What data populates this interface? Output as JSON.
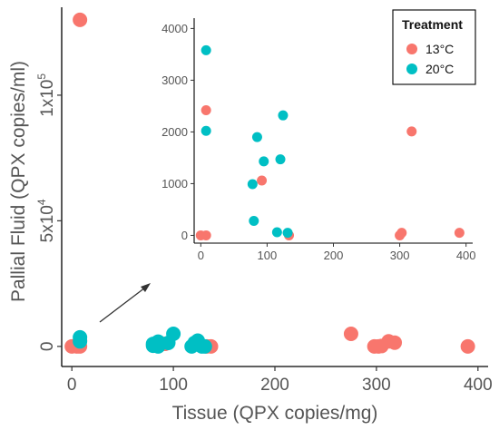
{
  "chart_data": {
    "type": "scatter",
    "xlabel": "Tissue (QPX copies/mg)",
    "ylabel": "Pallial Fluid (QPX copies/ml)",
    "xlim": [
      -10,
      410
    ],
    "ylim": [
      -8000,
      135000
    ],
    "x_ticks": [
      0,
      100,
      200,
      300,
      400
    ],
    "x_tick_labels": [
      "0",
      "100",
      "200",
      "300",
      "400"
    ],
    "y_ticks": [
      0,
      50000,
      100000
    ],
    "y_tick_labels": [
      {
        "text": "0",
        "sup": ""
      },
      {
        "text": "5x10",
        "sup": "4"
      },
      {
        "text": "1x10",
        "sup": "5"
      }
    ],
    "legend": {
      "title": "Treatment",
      "placement": "top-right",
      "entries": [
        {
          "label": "13°C",
          "color": "#F8766D"
        },
        {
          "label": "20°C",
          "color": "#00BFC4"
        }
      ]
    },
    "series": [
      {
        "name": "13°C",
        "color": "#F8766D",
        "points": [
          [
            0,
            0
          ],
          [
            5,
            0
          ],
          [
            8,
            0
          ],
          [
            8,
            2400
          ],
          [
            8,
            130000
          ],
          [
            92,
            1050
          ],
          [
            133,
            0
          ],
          [
            137,
            0
          ],
          [
            275,
            5000
          ],
          [
            298,
            0
          ],
          [
            302,
            0
          ],
          [
            305,
            150
          ],
          [
            312,
            2000
          ],
          [
            318,
            1500
          ],
          [
            390,
            0
          ]
        ]
      },
      {
        "name": "20°C",
        "color": "#00BFC4",
        "points": [
          [
            8,
            3600
          ],
          [
            8,
            2000
          ],
          [
            80,
            1000
          ],
          [
            80,
            250
          ],
          [
            85,
            0
          ],
          [
            85,
            1900
          ],
          [
            95,
            1400
          ],
          [
            100,
            5000
          ],
          [
            118,
            0
          ],
          [
            121,
            1450
          ],
          [
            124,
            2300
          ],
          [
            128,
            0
          ],
          [
            131,
            0
          ]
        ]
      }
    ],
    "inset": {
      "xlim": [
        -10,
        410
      ],
      "ylim": [
        -150,
        4200
      ],
      "x_ticks": [
        0,
        100,
        200,
        300,
        400
      ],
      "x_tick_labels": [
        "0",
        "100",
        "200",
        "300",
        "400"
      ],
      "y_ticks": [
        0,
        1000,
        2000,
        3000,
        4000
      ],
      "y_tick_labels": [
        "0",
        "1000",
        "2000",
        "3000",
        "4000"
      ],
      "series": [
        {
          "name": "13°C",
          "color": "#F8766D",
          "points": [
            [
              0,
              0
            ],
            [
              8,
              0
            ],
            [
              8,
              2420
            ],
            [
              92,
              1060
            ],
            [
              133,
              0
            ],
            [
              300,
              0
            ],
            [
              303,
              50
            ],
            [
              318,
              2010
            ],
            [
              390,
              50
            ]
          ]
        },
        {
          "name": "20°C",
          "color": "#00BFC4",
          "points": [
            [
              8,
              3580
            ],
            [
              8,
              2020
            ],
            [
              78,
              990
            ],
            [
              80,
              280
            ],
            [
              85,
              1900
            ],
            [
              95,
              1430
            ],
            [
              115,
              60
            ],
            [
              120,
              1470
            ],
            [
              124,
              2320
            ],
            [
              131,
              50
            ]
          ]
        }
      ]
    }
  }
}
